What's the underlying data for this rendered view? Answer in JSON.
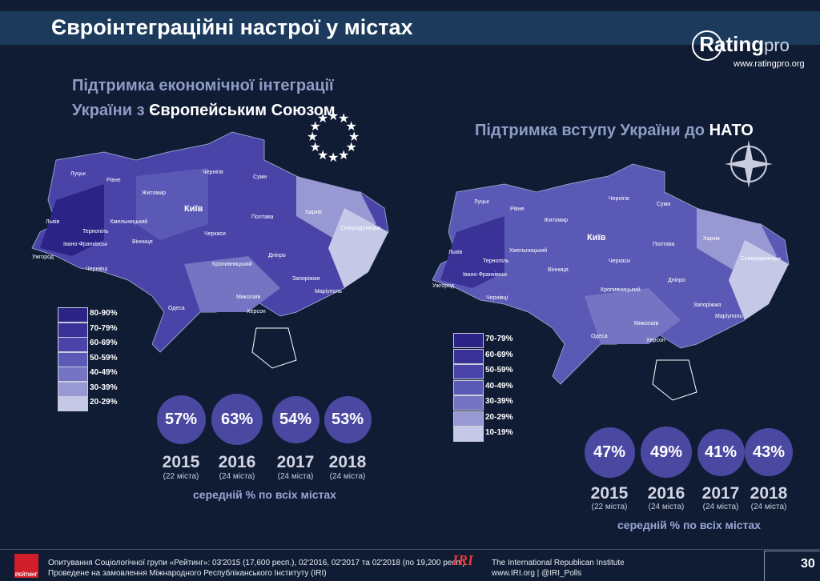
{
  "header": {
    "title": "Євроінтеграційні настрої у містах",
    "logo_text": "Rating",
    "logo_suffix": "pro",
    "logo_site": "www.ratingpro.org"
  },
  "left_panel": {
    "heading_line1": "Підтримка економічної інтеграції",
    "heading_line2_prefix": "України з ",
    "heading_line2_bold": "Європейським Союзом",
    "legend": [
      {
        "label": "80-90%",
        "color": "#2b2486"
      },
      {
        "label": "70-79%",
        "color": "#3a3296"
      },
      {
        "label": "60-69%",
        "color": "#4a44a8"
      },
      {
        "label": "50-59%",
        "color": "#5b59b6"
      },
      {
        "label": "40-49%",
        "color": "#7474c2"
      },
      {
        "label": "30-39%",
        "color": "#9898d2"
      },
      {
        "label": "20-29%",
        "color": "#c6c8e8"
      }
    ],
    "caption": "середній % по всіх містах"
  },
  "right_panel": {
    "heading_prefix": "Підтримка вступу України до ",
    "heading_bold": "НАТО",
    "legend": [
      {
        "label": "70-79%",
        "color": "#2b2486"
      },
      {
        "label": "60-69%",
        "color": "#3a3296"
      },
      {
        "label": "50-59%",
        "color": "#4a44a8"
      },
      {
        "label": "40-49%",
        "color": "#5b59b6"
      },
      {
        "label": "30-39%",
        "color": "#7474c2"
      },
      {
        "label": "20-29%",
        "color": "#9898d2"
      },
      {
        "label": "10-19%",
        "color": "#c6c8e8"
      }
    ],
    "caption": "середній % по всіх містах"
  },
  "map_cities": {
    "left": [
      "Луцьк",
      "Рівне",
      "Житомир",
      "Київ",
      "Чернігів",
      "Суми",
      "Харків",
      "Полтава",
      "Львів",
      "Тернопіль",
      "Хмельницький",
      "Вінниця",
      "Черкаси",
      "Івано-Франківськ",
      "Ужгород",
      "Чернівці",
      "Кропивницький",
      "Дніпро",
      "Запоріжжя",
      "Маріуполь",
      "Миколаїв",
      "Одеса",
      "Херсон",
      "Сєвєродонецьк"
    ],
    "right": [
      "Луцьк",
      "Рівне",
      "Житомир",
      "Київ",
      "Чернігів",
      "Суми",
      "Харків",
      "Полтава",
      "Львів",
      "Тернопіль",
      "Хмельницький",
      "Вінниця",
      "Черкаси",
      "Івано-Франківськ",
      "Ужгород",
      "Чернівці",
      "Кропивницький",
      "Дніпро",
      "Запоріжжя",
      "Маріуполь",
      "Миколаїв",
      "Одеса",
      "Херсон",
      "Сєвєродонецьк"
    ]
  },
  "chart_data": [
    {
      "type": "bubble",
      "title": "Підтримка економічної інтеграції України з Європейським Союзом",
      "categories": [
        "2015",
        "2016",
        "2017",
        "2018"
      ],
      "values": [
        57,
        63,
        54,
        53
      ],
      "value_labels": [
        "57%",
        "63%",
        "54%",
        "53%"
      ],
      "sublabels": [
        "(22 міста)",
        "(24 міста)",
        "(24 міста)",
        "(24 міста)"
      ],
      "xlabel": "середній % по всіх містах"
    },
    {
      "type": "bubble",
      "title": "Підтримка вступу України до НАТО",
      "categories": [
        "2015",
        "2016",
        "2017",
        "2018"
      ],
      "values": [
        47,
        49,
        41,
        43
      ],
      "value_labels": [
        "47%",
        "49%",
        "41%",
        "43%"
      ],
      "sublabels": [
        "(22 міста)",
        "(24 міста)",
        "(24 міста)",
        "(24 міста)"
      ],
      "xlabel": "середній % по всіх містах"
    }
  ],
  "footer": {
    "logo_label": "РЕЙТИНГ",
    "line1": "Опитування Соціологічної групи «Рейтинг»: 03'2015 (17,600 респ.), 02'2016, 02'2017 та 02'2018 (по 19,200 респ.).",
    "line2": "Проведене на замовлення Міжнародного Республіканського Інституту (IRI)",
    "iri_label": "IRI",
    "iri_line1": "The International Republican Institute",
    "iri_line2": "www.IRI.org | @IRI_Polls",
    "page_number": "30"
  },
  "colors": {
    "background": "#0f1c34",
    "titlebar": "#1b3a5c",
    "bubble": "#4b48a2"
  }
}
